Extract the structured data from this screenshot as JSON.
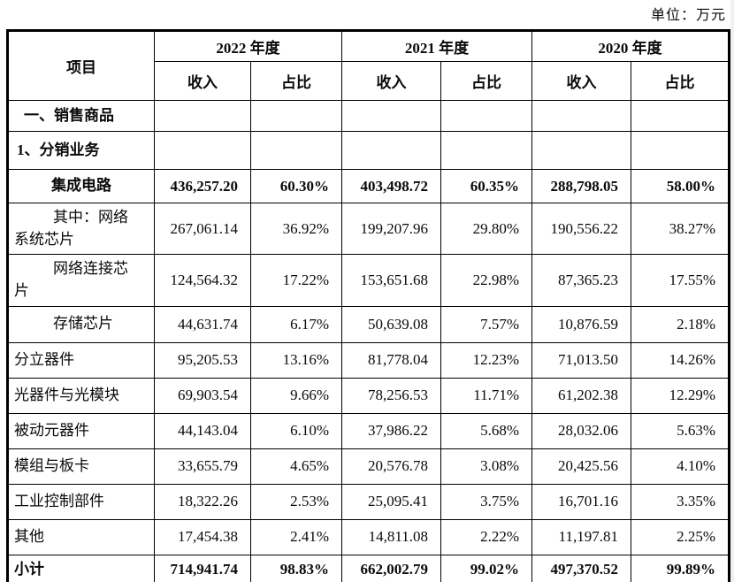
{
  "unit_label": "单位：万元",
  "table": {
    "item_header": "项目",
    "year_groups": [
      {
        "label": "2022 年度"
      },
      {
        "label": "2021 年度"
      },
      {
        "label": "2020 年度"
      }
    ],
    "col_headers": {
      "revenue": "收入",
      "share": "占比"
    },
    "rows": [
      {
        "type": "section-main",
        "label": "一、销售商品",
        "values": [
          "",
          "",
          "",
          "",
          "",
          ""
        ]
      },
      {
        "type": "section-sub",
        "label": "1、分销业务",
        "values": [
          "",
          "",
          "",
          "",
          "",
          ""
        ]
      },
      {
        "type": "parent",
        "label": "集成电路",
        "values": [
          "436,257.20",
          "60.30%",
          "403,498.72",
          "60.35%",
          "288,798.05",
          "58.00%"
        ]
      },
      {
        "type": "sub",
        "label": "其中：网络系统芯片",
        "values": [
          "267,061.14",
          "36.92%",
          "199,207.96",
          "29.80%",
          "190,556.22",
          "38.27%"
        ]
      },
      {
        "type": "sub",
        "label": "网络连接芯片",
        "values": [
          "124,564.32",
          "17.22%",
          "153,651.68",
          "22.98%",
          "87,365.23",
          "17.55%"
        ]
      },
      {
        "type": "sub",
        "label": "存储芯片",
        "values": [
          "44,631.74",
          "6.17%",
          "50,639.08",
          "7.57%",
          "10,876.59",
          "2.18%"
        ]
      },
      {
        "type": "item",
        "label": "分立器件",
        "values": [
          "95,205.53",
          "13.16%",
          "81,778.04",
          "12.23%",
          "71,013.50",
          "14.26%"
        ]
      },
      {
        "type": "item",
        "label": "光器件与光模块",
        "values": [
          "69,903.54",
          "9.66%",
          "78,256.53",
          "11.71%",
          "61,202.38",
          "12.29%"
        ]
      },
      {
        "type": "item",
        "label": "被动元器件",
        "values": [
          "44,143.04",
          "6.10%",
          "37,986.22",
          "5.68%",
          "28,032.06",
          "5.63%"
        ]
      },
      {
        "type": "item",
        "label": "模组与板卡",
        "values": [
          "33,655.79",
          "4.65%",
          "20,576.78",
          "3.08%",
          "20,425.56",
          "4.10%"
        ]
      },
      {
        "type": "item",
        "label": "工业控制部件",
        "values": [
          "18,322.26",
          "2.53%",
          "25,095.41",
          "3.75%",
          "16,701.16",
          "3.35%"
        ]
      },
      {
        "type": "item",
        "label": "其他",
        "values": [
          "17,454.38",
          "2.41%",
          "14,811.08",
          "2.22%",
          "11,197.81",
          "2.25%"
        ]
      },
      {
        "type": "total",
        "label": "小计",
        "values": [
          "714,941.74",
          "98.83%",
          "662,002.79",
          "99.02%",
          "497,370.52",
          "99.89%"
        ]
      },
      {
        "type": "partial",
        "label": "",
        "values": [
          "",
          "",
          "",
          "",
          "",
          ""
        ]
      }
    ]
  }
}
